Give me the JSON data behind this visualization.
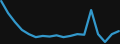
{
  "x": [
    0,
    1,
    2,
    3,
    4,
    5,
    6,
    7,
    8,
    9,
    10,
    11,
    12,
    13,
    14,
    15,
    16,
    17
  ],
  "y": [
    13.0,
    11.0,
    9.5,
    8.2,
    7.5,
    7.0,
    7.2,
    7.1,
    7.3,
    7.0,
    7.2,
    7.5,
    7.4,
    11.5,
    7.5,
    6.2,
    7.5,
    8.0
  ],
  "line_color": "#3399cc",
  "background_color": "#111111",
  "linewidth": 1.6
}
